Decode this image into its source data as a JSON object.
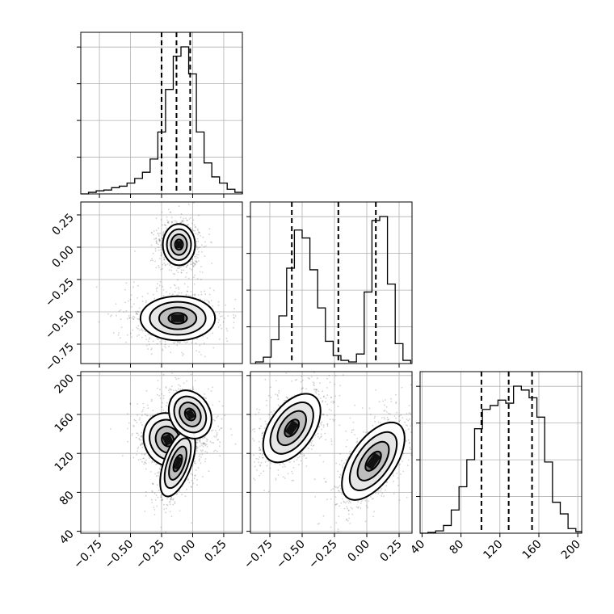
{
  "chart_data": {
    "type": "corner",
    "title": "",
    "grid": true,
    "parameters": [
      {
        "key": "p0",
        "label": "",
        "range": [
          -0.9,
          0.4
        ],
        "ticks": [
          -0.75,
          -0.5,
          -0.25,
          0.0,
          0.25
        ],
        "tick_labels": [
          "−0.75",
          "−0.50",
          "−0.25",
          "0.00",
          "0.25"
        ],
        "quantiles": [
          -0.25,
          -0.13,
          -0.02
        ]
      },
      {
        "key": "p1",
        "label": "",
        "range": [
          -0.9,
          0.35
        ],
        "ticks": [
          -0.75,
          -0.5,
          -0.25,
          0.0,
          0.25
        ],
        "tick_labels": [
          "−0.75",
          "−0.50",
          "−0.25",
          "0.00",
          "0.25"
        ],
        "quantiles": [
          -0.58,
          -0.22,
          0.07
        ]
      },
      {
        "key": "p2",
        "label": "",
        "range": [
          38,
          204
        ],
        "ticks": [
          40,
          80,
          120,
          160,
          200
        ],
        "tick_labels": [
          "40",
          "80",
          "120",
          "160",
          "200"
        ],
        "quantiles": [
          101,
          129,
          153
        ]
      }
    ],
    "histograms": [
      {
        "param": "p0",
        "bin_edges": [
          -0.9,
          -0.838,
          -0.776,
          -0.714,
          -0.652,
          -0.59,
          -0.528,
          -0.466,
          -0.404,
          -0.342,
          -0.28,
          -0.218,
          -0.156,
          -0.094,
          -0.032,
          0.03,
          0.092,
          0.154,
          0.216,
          0.278,
          0.34,
          0.4
        ],
        "counts": [
          0,
          2,
          4,
          5,
          8,
          10,
          14,
          20,
          28,
          45,
          80,
          135,
          178,
          190,
          155,
          80,
          40,
          22,
          14,
          6,
          2
        ]
      },
      {
        "param": "p1",
        "bin_edges": [
          -0.86,
          -0.8,
          -0.74,
          -0.68,
          -0.62,
          -0.56,
          -0.5,
          -0.44,
          -0.38,
          -0.32,
          -0.26,
          -0.2,
          -0.14,
          -0.08,
          -0.02,
          0.04,
          0.1,
          0.16,
          0.22,
          0.28,
          0.34
        ],
        "counts": [
          2,
          8,
          30,
          60,
          120,
          168,
          158,
          118,
          70,
          28,
          10,
          4,
          2,
          12,
          90,
          180,
          185,
          100,
          25,
          4
        ]
      },
      {
        "param": "p2",
        "bin_edges": [
          38,
          46,
          54,
          62,
          70,
          78,
          86,
          94,
          102,
          110,
          118,
          126,
          134,
          142,
          150,
          158,
          166,
          174,
          182,
          190,
          198,
          204
        ],
        "counts": [
          0,
          1,
          3,
          10,
          30,
          60,
          95,
          135,
          160,
          165,
          172,
          168,
          190,
          185,
          175,
          150,
          92,
          40,
          25,
          6,
          2
        ]
      }
    ],
    "pairs": [
      {
        "x": "p0",
        "y": "p1",
        "modes": [
          {
            "cx": -0.11,
            "cy": 0.02,
            "sx": 0.065,
            "sy": 0.08,
            "rot": 0,
            "weight": 1.0
          },
          {
            "cx": -0.12,
            "cy": -0.55,
            "sx": 0.15,
            "sy": 0.085,
            "rot": 0,
            "weight": 1.0
          }
        ]
      },
      {
        "x": "p0",
        "y": "p2",
        "modes": [
          {
            "cx": -0.2,
            "cy": 134,
            "sx": 0.095,
            "sy": 14,
            "rot": -25,
            "weight": 0.9
          },
          {
            "cx": -0.12,
            "cy": 110,
            "sx": 0.055,
            "sy": 18,
            "rot": 20,
            "weight": 0.85
          },
          {
            "cx": -0.02,
            "cy": 160,
            "sx": 0.08,
            "sy": 13,
            "rot": -30,
            "weight": 0.65
          }
        ]
      },
      {
        "x": "p1",
        "y": "p2",
        "modes": [
          {
            "cx": -0.58,
            "cy": 146,
            "sx": 0.085,
            "sy": 20,
            "rot": 35,
            "weight": 1.0
          },
          {
            "cx": 0.05,
            "cy": 112,
            "sx": 0.085,
            "sy": 23,
            "rot": 35,
            "weight": 1.0
          }
        ]
      }
    ]
  }
}
